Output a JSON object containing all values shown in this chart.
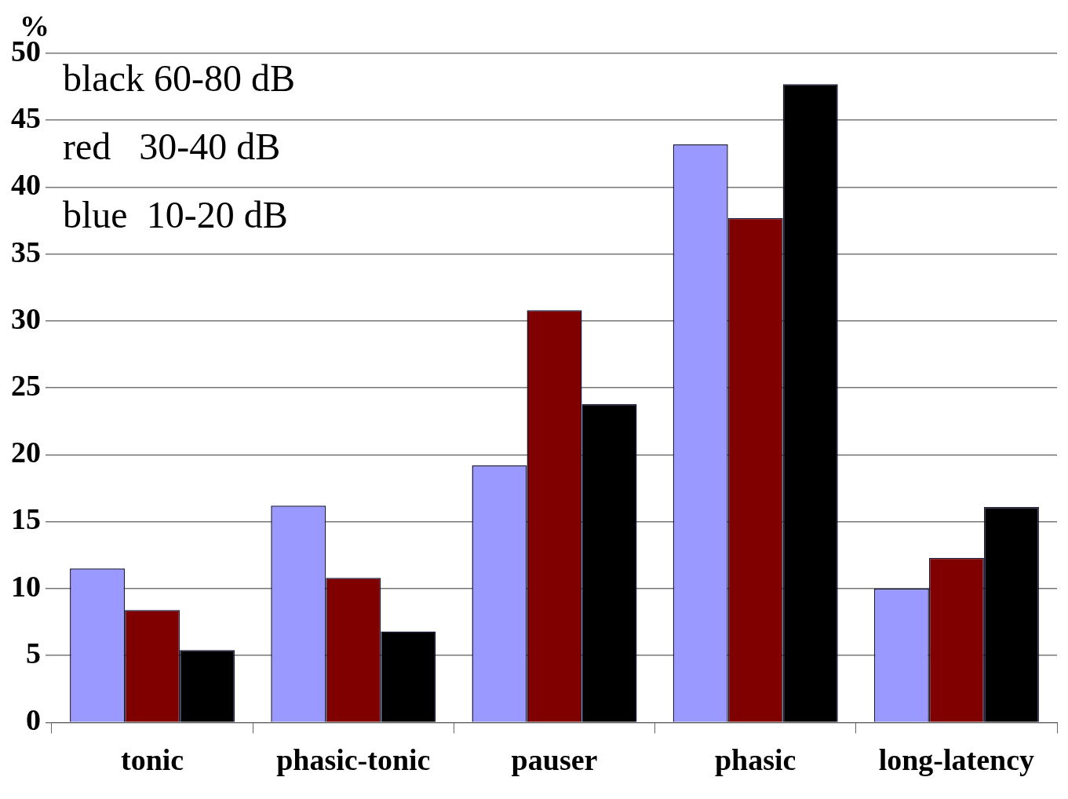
{
  "chart_data": {
    "type": "bar",
    "ylabel": "%",
    "categories": [
      "tonic",
      "phasic-tonic",
      "pauser",
      "phasic",
      "long-latency"
    ],
    "series": [
      {
        "color": "#9999ff",
        "values": [
          11.5,
          16.2,
          19.2,
          43.2,
          10.0
        ]
      },
      {
        "color": "#800000",
        "values": [
          8.4,
          10.8,
          30.8,
          37.7,
          12.3
        ]
      },
      {
        "color": "#000000",
        "values": [
          5.4,
          6.8,
          23.8,
          47.7,
          16.1
        ]
      }
    ],
    "ylim": [
      0,
      50
    ],
    "yticks": [
      0,
      5,
      10,
      15,
      20,
      25,
      30,
      35,
      40,
      45,
      50
    ],
    "grid": "y",
    "legend": false,
    "annotations": [
      "black 60-80 dB",
      "red   30-40 dB",
      "blue  10-20 dB"
    ]
  }
}
